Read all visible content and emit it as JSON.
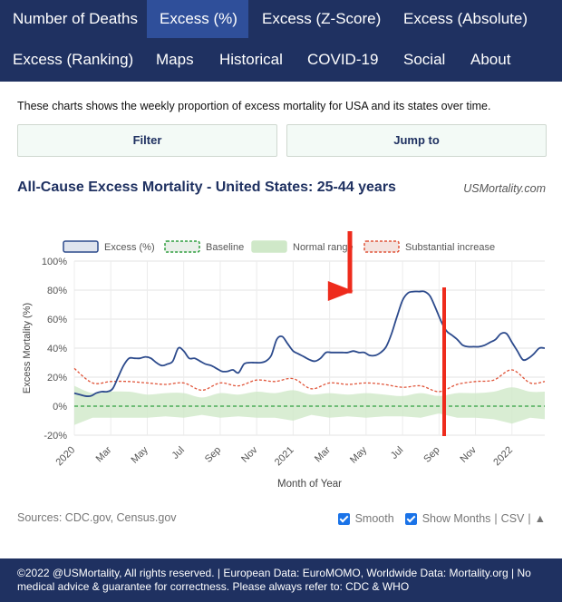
{
  "nav": {
    "row1": [
      "Number of Deaths",
      "Excess (%)",
      "Excess (Z-Score)",
      "Excess (Absolute)"
    ],
    "row2": [
      "Excess (Ranking)",
      "Maps",
      "Historical",
      "COVID-19",
      "Social",
      "About"
    ],
    "active": "Excess (%)"
  },
  "description": "These charts shows the weekly proportion of excess mortality for USA and its states over time.",
  "buttons": {
    "filter": "Filter",
    "jump": "Jump to"
  },
  "header": {
    "title": "All-Cause Excess Mortality - United States: 25-44 years",
    "brand": "USMortality.com"
  },
  "chart_data": {
    "type": "line",
    "ylabel": "Excess Mortality (%)",
    "xlabel": "Month of Year",
    "ylim": [
      -20,
      100
    ],
    "yticks": [
      "100%",
      "80%",
      "60%",
      "40%",
      "20%",
      "0%",
      "-20%"
    ],
    "xticks": [
      "2020",
      "Mar",
      "May",
      "Jul",
      "Sep",
      "Nov",
      "2021",
      "Mar",
      "May",
      "Jul",
      "Sep",
      "Nov",
      "2022"
    ],
    "grid": true,
    "legend_position": "top",
    "legend": [
      "Excess (%)",
      "Baseline",
      "Normal range",
      "Substantial increase"
    ],
    "colors": {
      "excess": "#2c4a8c",
      "baseline": "#2e9e3e",
      "normal_range": "#cfe8c8",
      "substantial": "#e0553a",
      "arrow": "#ee2b1c"
    },
    "series": [
      {
        "name": "Excess (%)",
        "x": [
          0,
          0.3,
          0.6,
          0.9,
          1.2,
          1.5,
          1.8,
          2.1,
          2.4,
          2.7,
          3.0,
          3.3,
          3.6,
          3.9,
          4.2,
          4.5,
          4.8,
          5.1,
          5.4,
          5.7,
          6.0,
          6.3,
          6.6,
          6.9,
          7.2,
          7.5,
          7.8,
          8.1,
          8.4,
          8.7,
          9.0,
          9.3,
          9.6,
          9.9,
          10.2,
          10.5,
          10.8,
          11.1,
          11.4,
          11.7,
          12.0,
          12.3,
          12.6,
          12.9,
          13.2,
          13.5,
          13.8,
          14.1,
          14.4,
          14.7,
          15.0,
          15.3,
          15.6,
          15.9,
          16.2,
          16.5,
          16.8,
          17.1,
          17.4,
          17.7,
          18.0,
          18.3,
          18.6,
          18.9,
          19.2,
          19.5,
          19.8,
          20.1,
          20.4,
          20.7,
          21.0,
          21.3,
          21.6,
          21.9,
          22.2,
          22.5,
          22.8,
          23.1,
          23.4,
          23.7,
          24.0,
          24.3,
          24.6,
          24.9,
          25.2,
          25.5,
          25.8
        ],
        "values": [
          9,
          8,
          7,
          7,
          9,
          10,
          10,
          12,
          20,
          28,
          33,
          33,
          33,
          34,
          33,
          30,
          28,
          29,
          31,
          40,
          38,
          33,
          33,
          31,
          29,
          28,
          26,
          24,
          24,
          25,
          23,
          29,
          30,
          30,
          30,
          31,
          35,
          46,
          48,
          43,
          38,
          36,
          34,
          32,
          31,
          33,
          37,
          37,
          37,
          37,
          37,
          38,
          37,
          37,
          35,
          35,
          37,
          41,
          50,
          62,
          73,
          78,
          79,
          79,
          79,
          76,
          68,
          59,
          52,
          49,
          46,
          42,
          41,
          41,
          41,
          42,
          44,
          46,
          50,
          50,
          44,
          38,
          32,
          33,
          36,
          40,
          40
        ]
      },
      {
        "name": "Baseline",
        "values": [
          0
        ]
      },
      {
        "name": "Substantial increase",
        "x": [
          0,
          1,
          2,
          3,
          4,
          5,
          6,
          7,
          8,
          9,
          10,
          11,
          12,
          13,
          14,
          15,
          16,
          17,
          18,
          19,
          20,
          21,
          22,
          23,
          24,
          25,
          25.8
        ],
        "values": [
          26,
          16,
          17,
          17,
          16,
          15,
          16,
          11,
          16,
          14,
          18,
          17,
          19,
          12,
          16,
          15,
          16,
          15,
          13,
          14,
          10,
          15,
          17,
          18,
          25,
          16,
          17
        ]
      }
    ],
    "normal_range": {
      "x": [
        0,
        1,
        2,
        3,
        4,
        5,
        6,
        7,
        8,
        9,
        10,
        11,
        12,
        13,
        14,
        15,
        16,
        17,
        18,
        19,
        20,
        21,
        22,
        23,
        24,
        25,
        25.8
      ],
      "upper": [
        14,
        9,
        10,
        10,
        8,
        9,
        9,
        6,
        9,
        8,
        10,
        9,
        11,
        8,
        9,
        8,
        9,
        8,
        7,
        9,
        7,
        9,
        9,
        10,
        13,
        10,
        10
      ],
      "lower": [
        -13,
        -8,
        -8,
        -8,
        -8,
        -7,
        -8,
        -6,
        -8,
        -7,
        -8,
        -8,
        -10,
        -6,
        -8,
        -7,
        -8,
        -7,
        -7,
        -8,
        -5,
        -8,
        -8,
        -9,
        -12,
        -8,
        -9
      ]
    }
  },
  "footer": {
    "sources": "Sources: CDC.gov, Census.gov",
    "smooth_label": "Smooth",
    "months_label": "Show Months",
    "csv_label": "CSV",
    "separator": "|",
    "sort_icon": "▲",
    "copyright": "©2022 @USMortality, All rights reserved. | European Data: EuroMOMO, Worldwide Data: Mortality.org | No medical advice & guarantee for correctness. Please always refer to: CDC & WHO"
  }
}
